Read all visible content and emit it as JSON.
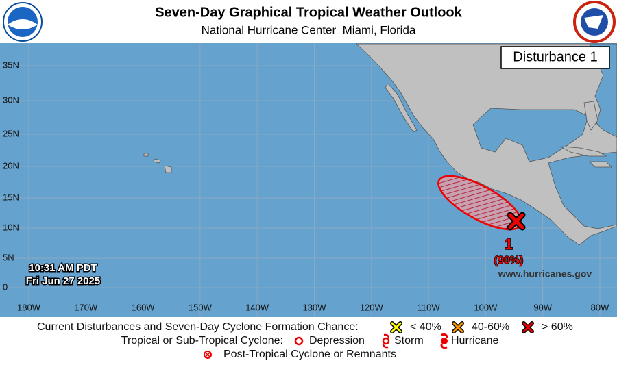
{
  "header": {
    "title": "Seven-Day Graphical Tropical Weather Outlook",
    "subtitle": "National Hurricane Center  Miami, Florida"
  },
  "map": {
    "panel_label": "Disturbance 1",
    "latitude_labels": [
      "35N",
      "30N",
      "25N",
      "20N",
      "15N",
      "10N",
      "5N",
      "0"
    ],
    "longitude_labels": [
      "180W",
      "170W",
      "160W",
      "150W",
      "140W",
      "130W",
      "120W",
      "110W",
      "100W",
      "90W",
      "80W"
    ],
    "timestamp": [
      "10:31 AM PDT",
      "Fri Jun 27 2025"
    ],
    "website": "www.hurricanes.gov",
    "disturbances": [
      {
        "number": "1",
        "chance": "(90%)"
      }
    ]
  },
  "legend": {
    "formation_title": "Current Disturbances and Seven-Day Cyclone Formation Chance:",
    "formation_levels": [
      "< 40%",
      "40-60%",
      "> 60%"
    ],
    "cyclone_title": "Tropical or Sub-Tropical Cyclone:",
    "cyclone_types": [
      "Depression",
      "Storm",
      "Hurricane"
    ],
    "post_tropical": "Post-Tropical Cyclone or Remnants"
  }
}
